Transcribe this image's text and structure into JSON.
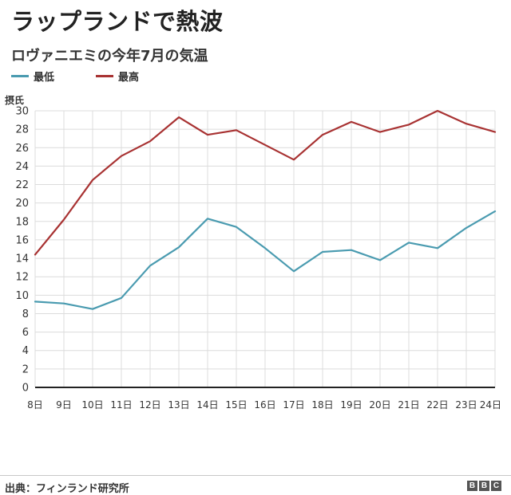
{
  "header": {
    "title": "ラップランドで熱波",
    "subtitle": "ロヴァニエミの今年7月の気温"
  },
  "footer": {
    "source": "出典：フィンランド研究所",
    "logo": [
      "B",
      "B",
      "C"
    ]
  },
  "chart_data": {
    "type": "line",
    "unit_label": "摂氏",
    "categories": [
      "8日",
      "9日",
      "10日",
      "11日",
      "12日",
      "13日",
      "14日",
      "15日",
      "16日",
      "17日",
      "18日",
      "19日",
      "20日",
      "21日",
      "22日",
      "23日",
      "24日"
    ],
    "series": [
      {
        "name": "最低",
        "color": "#4a9bb0",
        "values": [
          9.3,
          9.1,
          8.5,
          9.7,
          13.2,
          15.2,
          18.3,
          17.4,
          15.1,
          12.6,
          14.7,
          14.9,
          13.8,
          15.7,
          15.1,
          17.3,
          19.1
        ]
      },
      {
        "name": "最高",
        "color": "#a83232",
        "values": [
          14.4,
          18.2,
          22.5,
          25.1,
          26.7,
          29.3,
          27.4,
          27.9,
          26.3,
          24.7,
          27.4,
          28.8,
          27.7,
          28.5,
          30.0,
          28.6,
          27.7
        ]
      }
    ],
    "ylim": [
      0,
      30
    ],
    "yticks": [
      0,
      2,
      4,
      6,
      8,
      10,
      12,
      14,
      16,
      18,
      20,
      22,
      24,
      26,
      28,
      30
    ],
    "grid": true,
    "legend_position": "top-left"
  }
}
